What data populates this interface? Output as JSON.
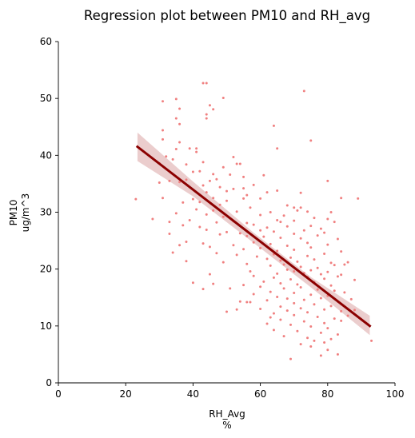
{
  "chart_data": {
    "type": "scatter",
    "title": "Regression plot between PM10 and RH_avg",
    "xlabel": [
      "RH_Avg",
      "%"
    ],
    "ylabel": [
      "PM10",
      "ug/m^3"
    ],
    "xlim": [
      0,
      100
    ],
    "ylim": [
      0,
      60
    ],
    "xticks": [
      0,
      20,
      40,
      60,
      80,
      100
    ],
    "yticks": [
      0,
      10,
      20,
      30,
      40,
      50,
      60
    ],
    "grid": false,
    "point_color": "#f08080",
    "line_color": "#8b0000",
    "band_color": "#e8c4c4",
    "regression": {
      "x": [
        23.5,
        92.5
      ],
      "y": [
        41.5,
        10.0
      ]
    },
    "confidence_band": {
      "x": [
        23.5,
        40,
        58,
        75,
        92.5
      ],
      "lower": [
        39.0,
        32.8,
        24.6,
        16.8,
        8.4
      ],
      "upper": [
        44.0,
        35.4,
        26.4,
        18.6,
        11.8
      ]
    },
    "points": [
      [
        43,
        52.7
      ],
      [
        44,
        52.7
      ],
      [
        49,
        50.1
      ],
      [
        35,
        49.9
      ],
      [
        31,
        49.5
      ],
      [
        73,
        51.3
      ],
      [
        36,
        48.2
      ],
      [
        45,
        48.8
      ],
      [
        46,
        48.1
      ],
      [
        44,
        47.2
      ],
      [
        35,
        46.5
      ],
      [
        36,
        45.5
      ],
      [
        31,
        44.4
      ],
      [
        44,
        46.5
      ],
      [
        64,
        45.2
      ],
      [
        31,
        42.8
      ],
      [
        75,
        42.6
      ],
      [
        36,
        42.3
      ],
      [
        39,
        41.2
      ],
      [
        41,
        41.2
      ],
      [
        35,
        41.1
      ],
      [
        41,
        40.6
      ],
      [
        65,
        41.2
      ],
      [
        32,
        39.8
      ],
      [
        34,
        39.3
      ],
      [
        52,
        39.7
      ],
      [
        30,
        38.6
      ],
      [
        38,
        38.4
      ],
      [
        43,
        38.8
      ],
      [
        49,
        37.9
      ],
      [
        53,
        38.5
      ],
      [
        54,
        38.5
      ],
      [
        40,
        37.1
      ],
      [
        42,
        37.2
      ],
      [
        46,
        36.7
      ],
      [
        51,
        36.6
      ],
      [
        55,
        36.2
      ],
      [
        61,
        36.5
      ],
      [
        80,
        35.5
      ],
      [
        33,
        35.5
      ],
      [
        36,
        35.3
      ],
      [
        38,
        35.7
      ],
      [
        45,
        35.5
      ],
      [
        47,
        35.8
      ],
      [
        30,
        35.2
      ],
      [
        39,
        34.4
      ],
      [
        43,
        34.7
      ],
      [
        48,
        34.4
      ],
      [
        52,
        34.1
      ],
      [
        55,
        34.2
      ],
      [
        58,
        34.8
      ],
      [
        44,
        33.5
      ],
      [
        50,
        33.7
      ],
      [
        56,
        33.0
      ],
      [
        62,
        33.5
      ],
      [
        65,
        33.8
      ],
      [
        84,
        32.5
      ],
      [
        89,
        32.4
      ],
      [
        23,
        32.3
      ],
      [
        31,
        32.5
      ],
      [
        40,
        32.3
      ],
      [
        46,
        32.5
      ],
      [
        50,
        32.0
      ],
      [
        55,
        32.4
      ],
      [
        60,
        32.4
      ],
      [
        37,
        31.7
      ],
      [
        42,
        31.8
      ],
      [
        48,
        31.3
      ],
      [
        57,
        30.8
      ],
      [
        70,
        30.8
      ],
      [
        72,
        30.8
      ],
      [
        41,
        30.5
      ],
      [
        46,
        30.3
      ],
      [
        53,
        30.1
      ],
      [
        63,
        30.0
      ],
      [
        71,
        30.3
      ],
      [
        74,
        30.1
      ],
      [
        81,
        30.0
      ],
      [
        35,
        29.8
      ],
      [
        44,
        29.6
      ],
      [
        49,
        29.2
      ],
      [
        60,
        29.5
      ],
      [
        67,
        29.4
      ],
      [
        76,
        29.0
      ],
      [
        80,
        28.8
      ],
      [
        28,
        28.8
      ],
      [
        33,
        28.3
      ],
      [
        39,
        28.6
      ],
      [
        47,
        28.2
      ],
      [
        52,
        28.4
      ],
      [
        56,
        28.1
      ],
      [
        65,
        28.6
      ],
      [
        70,
        28.5
      ],
      [
        82,
        28.3
      ],
      [
        37,
        27.7
      ],
      [
        42,
        27.4
      ],
      [
        58,
        27.8
      ],
      [
        62,
        27.3
      ],
      [
        68,
        27.5
      ],
      [
        75,
        27.6
      ],
      [
        78,
        27.1
      ],
      [
        44,
        26.9
      ],
      [
        50,
        26.5
      ],
      [
        54,
        26.3
      ],
      [
        64,
        26.6
      ],
      [
        70,
        26.2
      ],
      [
        73,
        26.8
      ],
      [
        79,
        26.4
      ],
      [
        33,
        26.2
      ],
      [
        48,
        26.1
      ],
      [
        56,
        25.8
      ],
      [
        61,
        25.7
      ],
      [
        66,
        25.5
      ],
      [
        72,
        25.4
      ],
      [
        77,
        25.9
      ],
      [
        83,
        25.3
      ],
      [
        38,
        24.8
      ],
      [
        43,
        24.5
      ],
      [
        52,
        24.2
      ],
      [
        58,
        24.7
      ],
      [
        63,
        24.4
      ],
      [
        68,
        24.1
      ],
      [
        74,
        24.6
      ],
      [
        80,
        24.3
      ],
      [
        36,
        24.2
      ],
      [
        45,
        23.9
      ],
      [
        55,
        23.5
      ],
      [
        60,
        23.7
      ],
      [
        65,
        23.2
      ],
      [
        70,
        23.4
      ],
      [
        75,
        23.8
      ],
      [
        84,
        23.1
      ],
      [
        34,
        22.9
      ],
      [
        47,
        22.8
      ],
      [
        53,
        22.5
      ],
      [
        59,
        22.2
      ],
      [
        64,
        22.6
      ],
      [
        69,
        22.0
      ],
      [
        74,
        22.3
      ],
      [
        79,
        22.7
      ],
      [
        62,
        21.8
      ],
      [
        66,
        21.5
      ],
      [
        71,
        21.3
      ],
      [
        76,
        21.7
      ],
      [
        81,
        21.1
      ],
      [
        86,
        21.2
      ],
      [
        38,
        21.4
      ],
      [
        49,
        21.2
      ],
      [
        56,
        20.9
      ],
      [
        63,
        20.6
      ],
      [
        67,
        20.8
      ],
      [
        72,
        20.4
      ],
      [
        77,
        20.2
      ],
      [
        82,
        20.7
      ],
      [
        68,
        19.9
      ],
      [
        70,
        19.6
      ],
      [
        73,
        19.3
      ],
      [
        75,
        19.8
      ],
      [
        78,
        19.1
      ],
      [
        80,
        19.5
      ],
      [
        65,
        19.2
      ],
      [
        84,
        19.0
      ],
      [
        45,
        19.1
      ],
      [
        58,
        18.8
      ],
      [
        64,
        18.5
      ],
      [
        69,
        18.2
      ],
      [
        74,
        18.6
      ],
      [
        79,
        18.3
      ],
      [
        83,
        18.7
      ],
      [
        88,
        18.1
      ],
      [
        61,
        17.8
      ],
      [
        66,
        17.5
      ],
      [
        71,
        17.3
      ],
      [
        76,
        17.7
      ],
      [
        81,
        17.1
      ],
      [
        46,
        17.4
      ],
      [
        55,
        17.2
      ],
      [
        60,
        16.9
      ],
      [
        67,
        16.6
      ],
      [
        72,
        16.8
      ],
      [
        77,
        16.4
      ],
      [
        82,
        16.2
      ],
      [
        43,
        16.5
      ],
      [
        51,
        16.6
      ],
      [
        63,
        16.0
      ],
      [
        70,
        15.8
      ],
      [
        75,
        15.5
      ],
      [
        80,
        15.3
      ],
      [
        85,
        15.9
      ],
      [
        58,
        15.6
      ],
      [
        65,
        15.1
      ],
      [
        68,
        14.8
      ],
      [
        73,
        14.6
      ],
      [
        78,
        14.9
      ],
      [
        83,
        14.3
      ],
      [
        87,
        14.7
      ],
      [
        56,
        14.2
      ],
      [
        62,
        14.5
      ],
      [
        70,
        14.0
      ],
      [
        76,
        13.8
      ],
      [
        81,
        13.5
      ],
      [
        66,
        13.4
      ],
      [
        72,
        13.1
      ],
      [
        79,
        12.9
      ],
      [
        84,
        12.6
      ],
      [
        60,
        13.0
      ],
      [
        68,
        12.7
      ],
      [
        74,
        12.4
      ],
      [
        88,
        12.8
      ],
      [
        64,
        12.2
      ],
      [
        70,
        11.9
      ],
      [
        77,
        11.6
      ],
      [
        82,
        11.3
      ],
      [
        86,
        11.8
      ],
      [
        66,
        11.1
      ],
      [
        73,
        10.8
      ],
      [
        79,
        10.5
      ],
      [
        84,
        10.9
      ],
      [
        62,
        10.4
      ],
      [
        69,
        10.2
      ],
      [
        75,
        9.9
      ],
      [
        80,
        9.6
      ],
      [
        64,
        9.3
      ],
      [
        71,
        9.1
      ],
      [
        78,
        8.8
      ],
      [
        83,
        8.5
      ],
      [
        67,
        8.2
      ],
      [
        74,
        7.9
      ],
      [
        81,
        7.7
      ],
      [
        76,
        7.4
      ],
      [
        79,
        7.1
      ],
      [
        72,
        6.8
      ],
      [
        75,
        6.4
      ],
      [
        80,
        5.8
      ],
      [
        83,
        5.0
      ],
      [
        69,
        4.2
      ],
      [
        78,
        4.8
      ],
      [
        93,
        7.4
      ],
      [
        54,
        14.3
      ],
      [
        57,
        14.2
      ],
      [
        50,
        12.5
      ],
      [
        53,
        12.9
      ],
      [
        60,
        26.8
      ],
      [
        57,
        19.6
      ],
      [
        40,
        17.6
      ],
      [
        68,
        31.2
      ],
      [
        72,
        33.4
      ],
      [
        66,
        28.3
      ],
      [
        85,
        20.8
      ],
      [
        63,
        11.5
      ]
    ]
  }
}
